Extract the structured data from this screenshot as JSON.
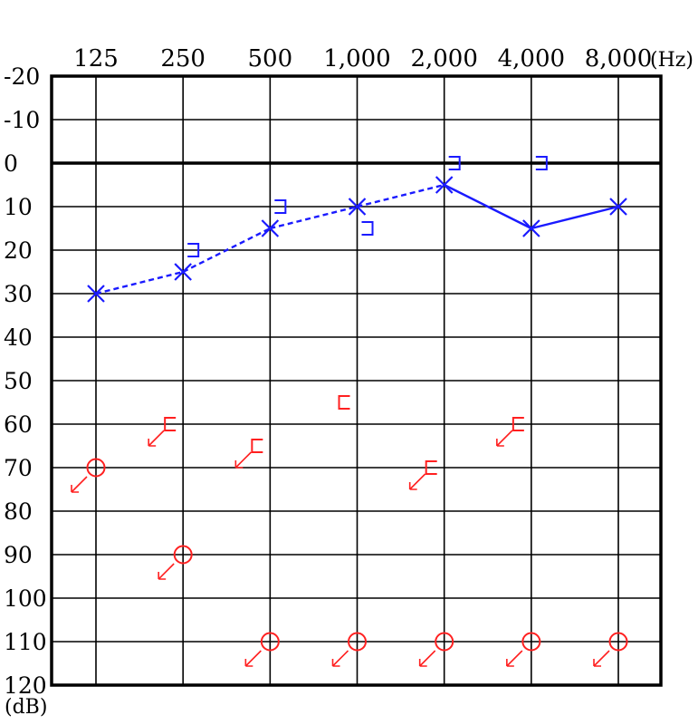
{
  "chart_data": {
    "type": "scatter",
    "x_unit": "(Hz)",
    "y_unit": "(dB)",
    "frequencies": [
      "125",
      "250",
      "500",
      "1,000",
      "2,000",
      "4,000",
      "8,000"
    ],
    "y_ticks": [
      "-20",
      "-10",
      "0",
      "10",
      "20",
      "30",
      "40",
      "50",
      "60",
      "70",
      "80",
      "90",
      "100",
      "110",
      "120"
    ],
    "ylim": [
      -20,
      120
    ],
    "y_inverted": true,
    "grid": true,
    "series": [
      {
        "symbol": "cross",
        "color": "#1a1aff",
        "connected": true,
        "values": [
          30,
          25,
          15,
          10,
          5,
          15,
          10
        ],
        "segment_styles": [
          "dashed",
          "dashed",
          "dashed",
          "dashed",
          "solid",
          "solid"
        ]
      },
      {
        "symbol": "bracket-right",
        "color": "#1a1aff",
        "connected": false,
        "points": [
          {
            "freq_index": 1,
            "value": 20
          },
          {
            "freq_index": 2,
            "value": 10
          },
          {
            "freq_index": 3,
            "value": 15
          },
          {
            "freq_index": 4,
            "value": 0
          },
          {
            "freq_index": 5,
            "value": 0
          }
        ]
      },
      {
        "symbol": "circle",
        "color": "#ff2020",
        "connected": false,
        "no_response_arrow": true,
        "points": [
          {
            "freq_index": 0,
            "value": 70
          },
          {
            "freq_index": 1,
            "value": 90
          },
          {
            "freq_index": 2,
            "value": 110
          },
          {
            "freq_index": 3,
            "value": 110
          },
          {
            "freq_index": 4,
            "value": 110
          },
          {
            "freq_index": 5,
            "value": 110
          },
          {
            "freq_index": 6,
            "value": 110
          }
        ]
      },
      {
        "symbol": "bracket-left",
        "color": "#ff2020",
        "connected": false,
        "points": [
          {
            "freq_index": 1,
            "value": 60,
            "no_response_arrow": true
          },
          {
            "freq_index": 2,
            "value": 65,
            "no_response_arrow": true
          },
          {
            "freq_index": 3,
            "value": 55,
            "no_response_arrow": false
          },
          {
            "freq_index": 4,
            "value": 70,
            "no_response_arrow": true
          },
          {
            "freq_index": 5,
            "value": 60,
            "no_response_arrow": true
          }
        ]
      }
    ]
  }
}
